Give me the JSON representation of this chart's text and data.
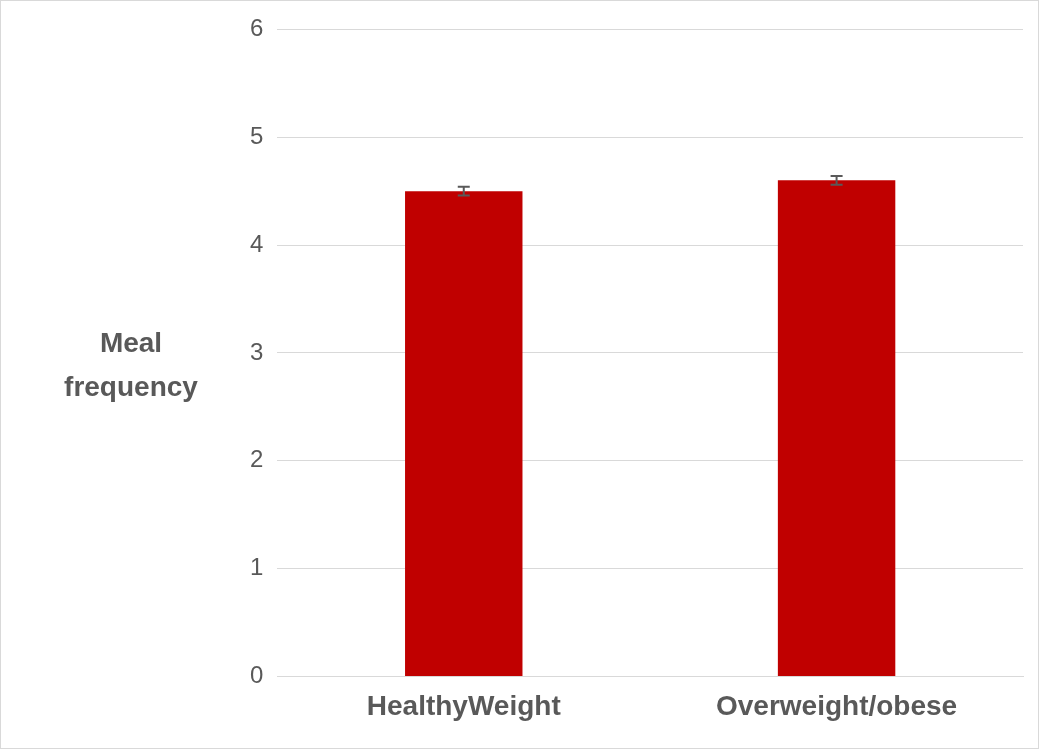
{
  "chart_data": {
    "type": "bar",
    "ylabel": "Meal frequency",
    "categories": [
      "HealthyWeight",
      "Overweight/obese"
    ],
    "values": [
      4.5,
      4.6
    ],
    "color": "#c00000",
    "errors": [
      0.04,
      0.04
    ],
    "ylim": [
      0,
      6
    ],
    "yticks": [
      0,
      1,
      2,
      3,
      4,
      5,
      6
    ],
    "grid": "y",
    "legend": false
  }
}
